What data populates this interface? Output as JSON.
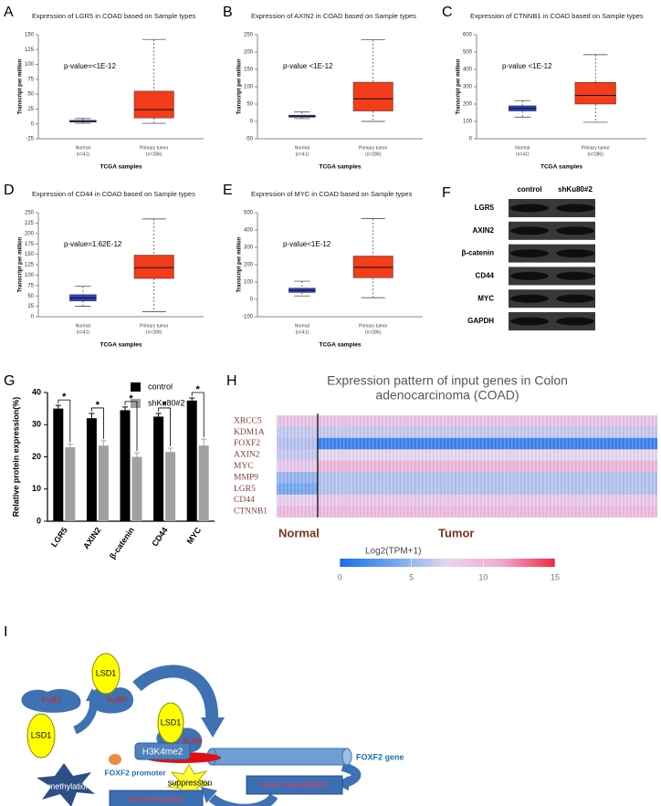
{
  "chart_data": [
    {
      "type": "box",
      "panel": "A",
      "title": "Expression of LGR5 in COAD based on Sample types",
      "annotation": "p-value=<1E-12",
      "ylabel": "Transcript per million",
      "xlabel": "TCGA samples",
      "ylim": [
        -25,
        150
      ],
      "yticks": [
        -25,
        0,
        25,
        50,
        75,
        100,
        125,
        150
      ],
      "boxes": [
        {
          "category": "Normal",
          "n": "(n=41)",
          "color": "#3040c0",
          "min": 1,
          "q1": 3,
          "median": 4,
          "q3": 6,
          "max": 9
        },
        {
          "category": "Primary tumor",
          "n": "(n=286)",
          "color": "#f23c1a",
          "min": 1,
          "q1": 10,
          "median": 24,
          "q3": 55,
          "max": 142
        }
      ]
    },
    {
      "type": "box",
      "panel": "B",
      "title": "Expression of AXIN2 in COAD based on Sample types",
      "annotation": "p-value <1E-12",
      "ylabel": "Transcript per million",
      "xlabel": "TCGA samples",
      "ylim": [
        -50,
        250
      ],
      "yticks": [
        -50,
        0,
        50,
        100,
        150,
        200,
        250
      ],
      "boxes": [
        {
          "category": "Normal",
          "n": "(n=41)",
          "color": "#3040c0",
          "min": 8,
          "q1": 12,
          "median": 15,
          "q3": 18,
          "max": 27
        },
        {
          "category": "Primary tumor",
          "n": "(n=286)",
          "color": "#f23c1a",
          "min": 0,
          "q1": 30,
          "median": 65,
          "q3": 113,
          "max": 235
        }
      ]
    },
    {
      "type": "box",
      "panel": "C",
      "title": "Expression of CTNNB1 in COAD based on Sample types",
      "annotation": "p-value  <1E-12",
      "ylabel": "Transcript per million",
      "xlabel": "TCGA samples",
      "ylim": [
        0,
        600
      ],
      "yticks": [
        0,
        100,
        200,
        300,
        400,
        500,
        600
      ],
      "boxes": [
        {
          "category": "Normal",
          "n": "(n=41)",
          "color": "#3040c0",
          "min": 125,
          "q1": 160,
          "median": 175,
          "q3": 190,
          "max": 220
        },
        {
          "category": "Primary tumor",
          "n": "(n=286)",
          "color": "#f23c1a",
          "min": 95,
          "q1": 200,
          "median": 250,
          "q3": 325,
          "max": 485
        }
      ]
    },
    {
      "type": "box",
      "panel": "D",
      "title": "Expression of CD44 in COAD based on Sample types",
      "annotation": "p-value=1.62E-12",
      "ylabel": "Transcript per million",
      "xlabel": "TCGA samples",
      "ylim": [
        0,
        250
      ],
      "yticks": [
        0,
        25,
        50,
        75,
        100,
        125,
        150,
        175,
        200,
        225,
        250
      ],
      "boxes": [
        {
          "category": "Normal",
          "n": "(n=41)",
          "color": "#3040c0",
          "min": 25,
          "q1": 38,
          "median": 45,
          "q3": 53,
          "max": 73
        },
        {
          "category": "Primary tumor",
          "n": "(n=286)",
          "color": "#f23c1a",
          "min": 12,
          "q1": 92,
          "median": 118,
          "q3": 148,
          "max": 235
        }
      ]
    },
    {
      "type": "box",
      "panel": "E",
      "title": "Expression of MYC in COAD based on Sample types",
      "annotation": "p-value<1E-12",
      "ylabel": "Transcript per million",
      "xlabel": "TCGA samples",
      "ylim": [
        -100,
        500
      ],
      "yticks": [
        -100,
        0,
        100,
        200,
        300,
        400,
        500
      ],
      "boxes": [
        {
          "category": "Normal",
          "n": "(n=41)",
          "color": "#3040c0",
          "min": 20,
          "q1": 40,
          "median": 52,
          "q3": 65,
          "max": 105
        },
        {
          "category": "Primary tumor",
          "n": "(n=286)",
          "color": "#f23c1a",
          "min": 10,
          "q1": 125,
          "median": 185,
          "q3": 250,
          "max": 465
        }
      ]
    },
    {
      "type": "bar",
      "panel": "G",
      "ylabel": "Relative protein expression(%)",
      "categories": [
        "LGR5",
        "AXIN2",
        "β-catenin",
        "CD44",
        "MYC"
      ],
      "series": [
        {
          "name": "control",
          "color": "#000000",
          "values": [
            35,
            32,
            34.5,
            32.5,
            37.5
          ],
          "errors": [
            1,
            1.5,
            1,
            1,
            0.8
          ]
        },
        {
          "name": "shKu80#2",
          "color": "#a0a0a0",
          "values": [
            23,
            23.5,
            20,
            21.5,
            23.5
          ],
          "errors": [
            1,
            1.5,
            1.2,
            1.2,
            2
          ]
        }
      ],
      "significance": [
        "*",
        "*",
        "*",
        "*",
        "*"
      ],
      "ylim": [
        0,
        40
      ],
      "yticks": [
        0,
        10,
        20,
        30,
        40
      ]
    },
    {
      "type": "heatmap",
      "panel": "H",
      "title": [
        "Expression pattern of input genes in Colon",
        "adenocarcinoma (COAD)"
      ],
      "rows": [
        "XRCC5",
        "KDM1A",
        "FOXF2",
        "AXIN2",
        "MYC",
        "MMP9",
        "LGR5",
        "CD44",
        "CTNNB1"
      ],
      "columns": [
        "Normal",
        "Tumor"
      ],
      "values": [
        [
          9,
          9
        ],
        [
          6.5,
          6.5
        ],
        [
          6,
          1.5
        ],
        [
          6.5,
          7.5
        ],
        [
          8.5,
          10
        ],
        [
          5,
          6
        ],
        [
          4,
          6
        ],
        [
          8,
          8.5
        ],
        [
          9.5,
          9.5
        ]
      ],
      "colorbar_title": "Log2(TPM+1)",
      "colorbar_lim": [
        0,
        15
      ],
      "colorbar_ticks": [
        0,
        5,
        10,
        15
      ],
      "colormap": [
        "#1a6ee8",
        "#6fa6ee",
        "#e6d6f0",
        "#f2a8d2",
        "#ee2a3e"
      ]
    }
  ],
  "western_blot": {
    "panel": "F",
    "columns": [
      "control",
      "shKu80#2"
    ],
    "rows": [
      "LGR5",
      "AXIN2",
      "β-catenin",
      "CD44",
      "MYC",
      "GAPDH"
    ]
  },
  "diagram": {
    "panel": "I",
    "nodes": [
      {
        "label": "LSD1"
      },
      {
        "label": "Ku80"
      },
      {
        "label": "LSD1"
      },
      {
        "label": "Ku80"
      },
      {
        "label": "H3K4me2"
      },
      {
        "label": "Ku80"
      },
      {
        "label": "LSD1"
      },
      {
        "label": "FOXF2 promoter"
      },
      {
        "label": "suppression"
      },
      {
        "label": "FOXF2 gene"
      },
      {
        "label": "Demethylation"
      },
      {
        "label": "Gene transcription"
      },
      {
        "label": "Cell metastasis"
      }
    ]
  }
}
